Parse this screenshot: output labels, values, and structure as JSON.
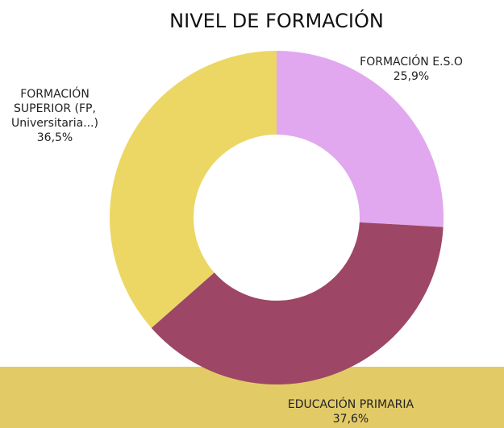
{
  "chart_data": {
    "type": "donut",
    "title": "NIVEL DE FORMACIÓN",
    "categories": [
      "FORMACIÓN E.S.O",
      "EDUCACIÓN PRIMARIA",
      "FORMACIÓN SUPERIOR (FP, Universitaria...)"
    ],
    "values": [
      25.9,
      37.6,
      36.5
    ],
    "value_labels": [
      "25,9%",
      "37,6%",
      "36,5%"
    ],
    "colors": [
      "#e1a8ef",
      "#9e4665",
      "#ecd765"
    ]
  }
}
